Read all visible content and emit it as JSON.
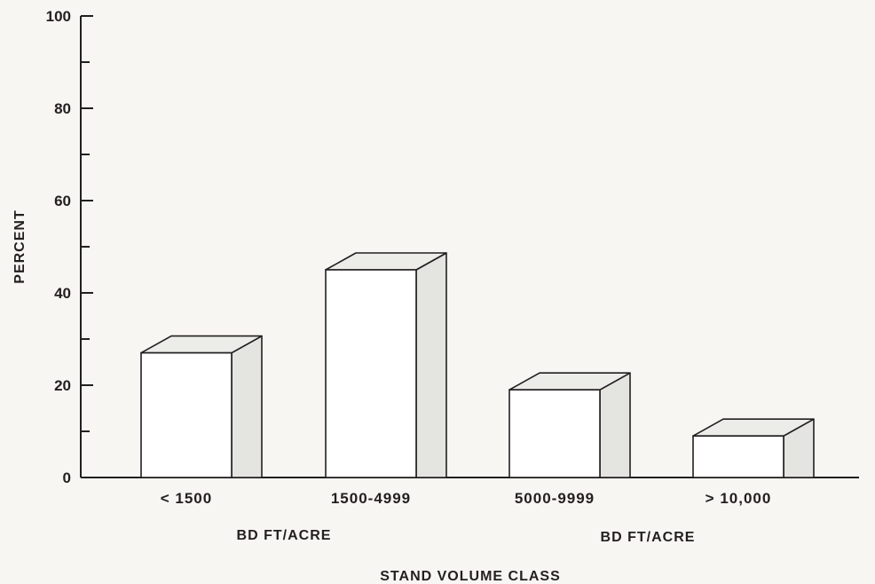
{
  "chart_data": {
    "type": "bar",
    "categories": [
      "< 1500",
      "1500-4999",
      "5000-9999",
      "> 10,000"
    ],
    "values": [
      27,
      45,
      19,
      9
    ],
    "ylabel": "PERCENT",
    "xlabel": "STAND VOLUME CLASS",
    "group_labels": [
      "BD FT/ACRE",
      "BD FT/ACRE"
    ],
    "ylim": [
      0,
      100
    ],
    "y_ticks": [
      0,
      20,
      40,
      60,
      80,
      100
    ],
    "y_ticks_labels": [
      "0",
      "20",
      "40",
      "60",
      "80",
      "100"
    ],
    "grid": false,
    "bar_style": "3d",
    "colors": {
      "bar_front": "#ffffff",
      "bar_side": "#e4e4e0",
      "bar_top": "#ecece8",
      "stroke": "#231f20"
    }
  }
}
